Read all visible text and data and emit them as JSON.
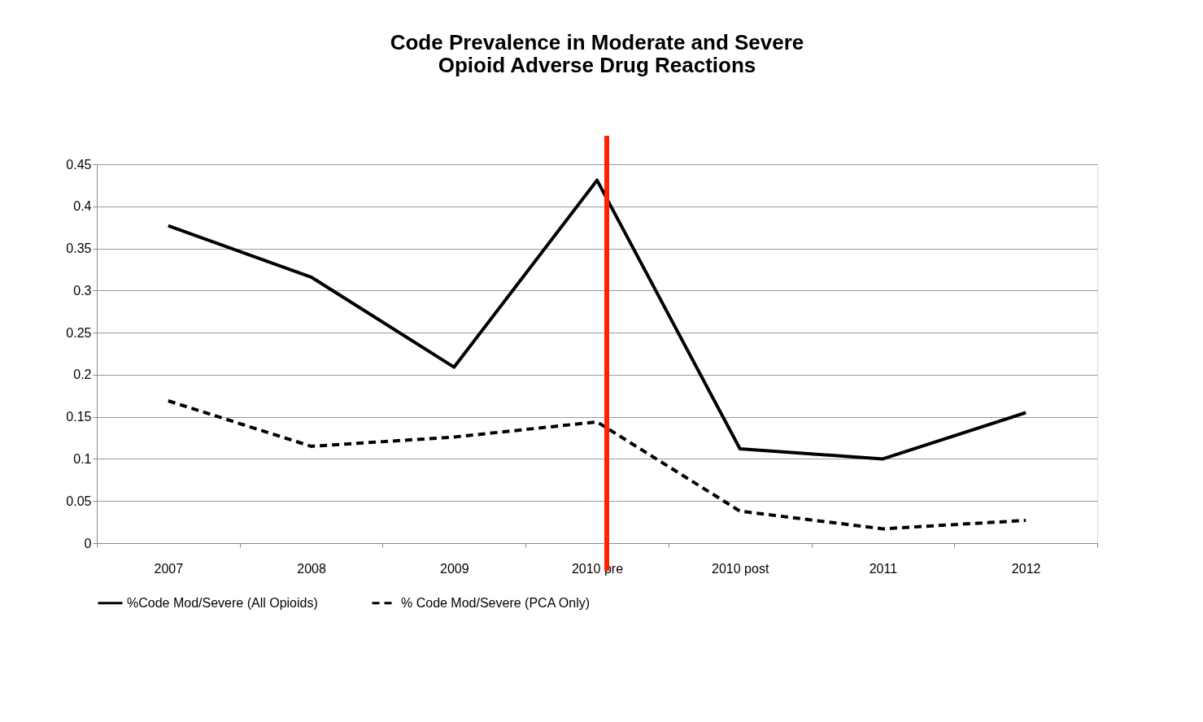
{
  "chart_data": {
    "type": "line",
    "title": "Code Prevalence in Moderate and Severe\nOpioid Adverse Drug Reactions",
    "categories": [
      "2007",
      "2008",
      "2009",
      "2010 pre",
      "2010 post",
      "2011",
      "2012"
    ],
    "series": [
      {
        "name": "%Code Mod/Severe (All Opioids)",
        "color": "#000000",
        "line_style": "solid",
        "values": [
          0.377,
          0.316,
          0.209,
          0.431,
          0.112,
          0.1,
          0.155
        ]
      },
      {
        "name": "% Code Mod/Severe (PCA Only)",
        "color": "#000000",
        "line_style": "dashed",
        "values": [
          0.169,
          0.115,
          0.126,
          0.144,
          0.038,
          0.017,
          0.027
        ]
      }
    ],
    "ylim": [
      0,
      0.45
    ],
    "yticks": [
      0,
      0.05,
      0.1,
      0.15,
      0.2,
      0.25,
      0.3,
      0.35,
      0.4,
      0.45
    ],
    "ref_lines": [
      {
        "axis": "x",
        "value": "2010 pre",
        "color": "#ff2200",
        "line_style": "solid"
      }
    ],
    "grid": "y",
    "legend": "bottom",
    "marker": "none"
  }
}
